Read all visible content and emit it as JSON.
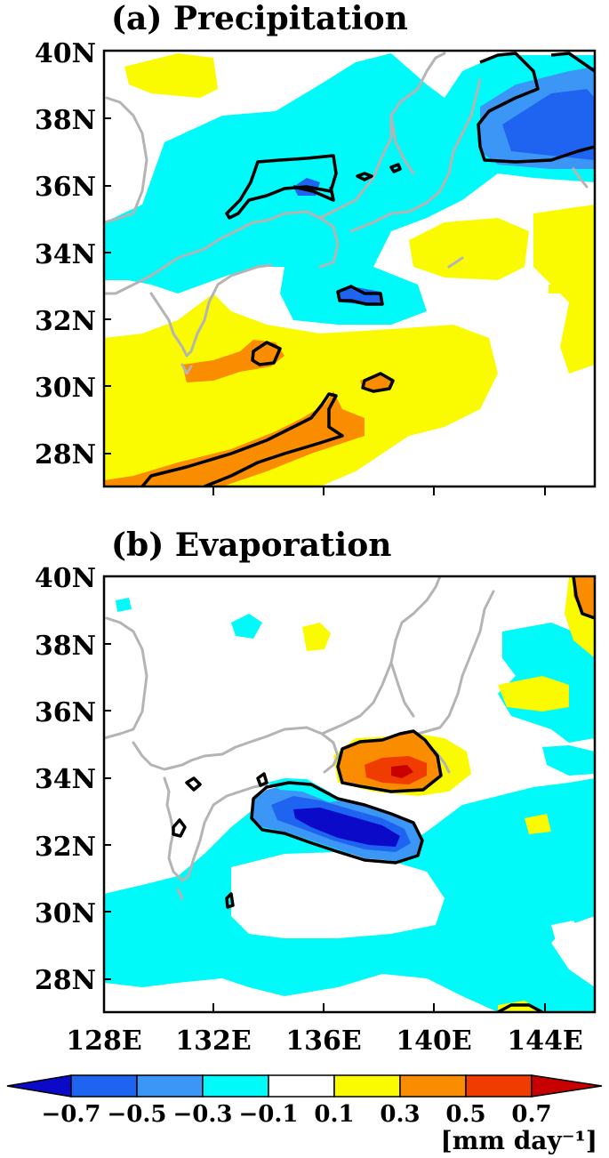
{
  "panels": [
    {
      "label": "(a) Precipitation"
    },
    {
      "label": "(b) Evaporation"
    }
  ],
  "lat_labels": [
    "40N",
    "38N",
    "36N",
    "34N",
    "32N",
    "30N",
    "28N"
  ],
  "lon_labels": [
    "128E",
    "132E",
    "136E",
    "140E",
    "144E"
  ],
  "colorbar": {
    "labels": [
      "−0.7",
      "−0.5",
      "−0.3",
      "−0.1",
      "0.1",
      "0.3",
      "0.5",
      "0.7"
    ],
    "colors": [
      "#0a0ac8",
      "#1e64f0",
      "#3c96f5",
      "#00fafa",
      "#ffffff",
      "#fafa00",
      "#fa8c00",
      "#f03c00",
      "#c80000"
    ],
    "units": "[mm day⁻¹]"
  },
  "map": {
    "lon_range": [
      128,
      146
    ],
    "lat_range": [
      27,
      40
    ],
    "coastline_color": "#b4b4b4",
    "contour_color": "#000000"
  }
}
